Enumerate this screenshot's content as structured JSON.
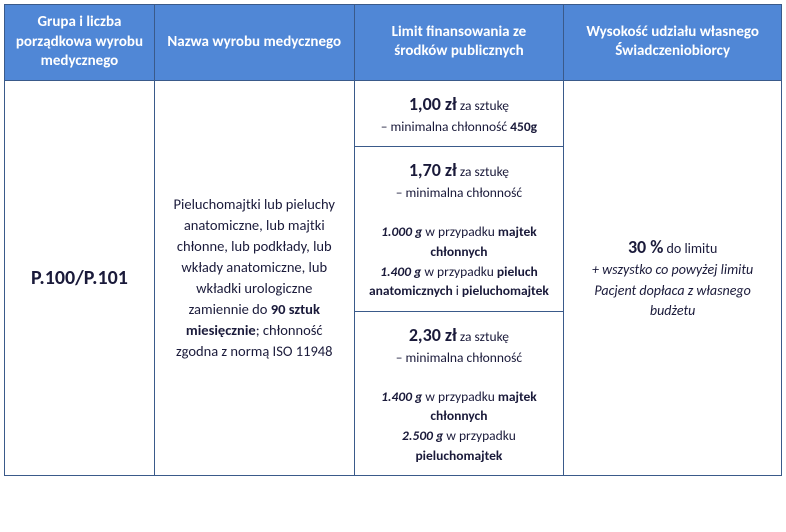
{
  "header": {
    "col1": "Grupa i liczba porządkowa wyrobu medycznego",
    "col2": "Nazwa wyrobu medycznego",
    "col3": "Limit finansowania ze środków publicznych",
    "col4": "Wysokość udziału własnego Świadczeniobiorcy"
  },
  "row": {
    "code": "P.100/P.101",
    "desc_pre": "Pieluchomajtki lub pieluchy anatomiczne, lub majtki chłonne, lub podkłady, lub wkłady anatomiczne, lub wkładki urologiczne zamiennie do ",
    "desc_bold": "90 sztuk miesięcznie",
    "desc_post": "; chłonność zgodna z normą ISO 11948",
    "limits": {
      "a": {
        "price": "1,00 zł",
        "per": " za sztukę",
        "line2a": "– minimalna chłonność ",
        "line2b": "450g"
      },
      "b": {
        "price": "1,70 zł",
        "per": " za sztukę",
        "line2": "– minimalna chłonność",
        "d1a": "1.000 g",
        "d1b": " w przypadku ",
        "d1c": "majtek chłonnych",
        "d2a": "1.400 g",
        "d2b": " w przypadku ",
        "d2c": "pieluch anatomicznych",
        "d2d": " i ",
        "d2e": "pieluchomajtek"
      },
      "c": {
        "price": "2,30 zł",
        "per": " za sztukę",
        "line2": "– minimalna chłonność",
        "d1a": "1.400 g",
        "d1b": " w przypadku ",
        "d1c": "majtek chłonnych",
        "d2a": "2.500 g",
        "d2b": " w przypadku ",
        "d2c": "pieluchomajtek"
      }
    },
    "share": {
      "pct": "30 %",
      "text": " do limitu",
      "note": "+ wszystko co powyżej limitu Pacjent dopłaca z własnego budżetu"
    }
  }
}
